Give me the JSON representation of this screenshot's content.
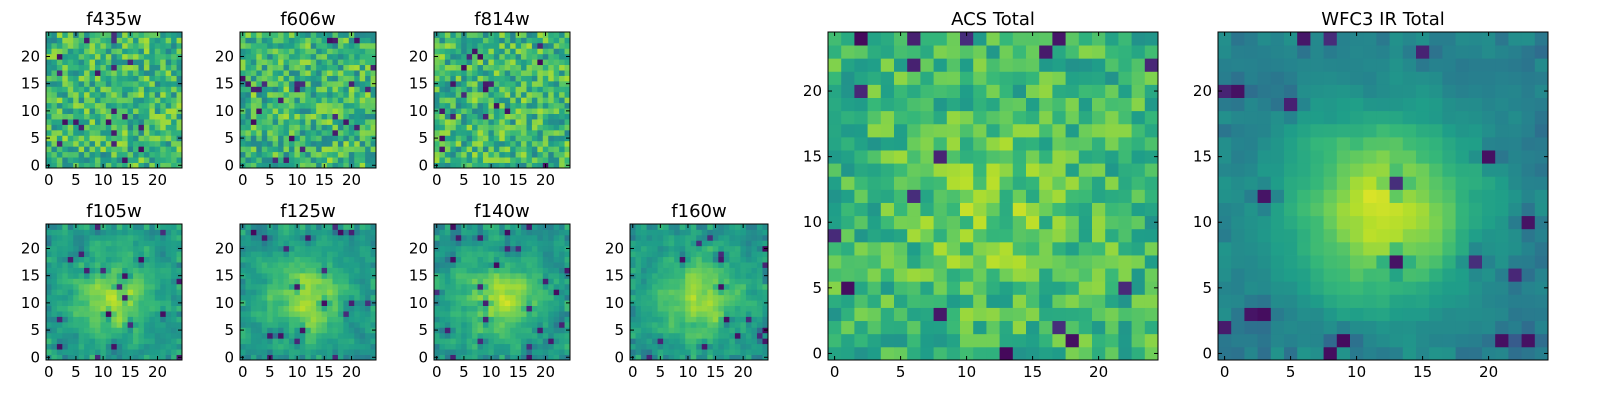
{
  "chart_data": [
    {
      "type": "heatmap",
      "title": "f435w",
      "colormap": "viridis",
      "grid": false,
      "xlim": [
        -0.5,
        24.5
      ],
      "ylim": [
        -0.5,
        24.5
      ],
      "grid_size": 25,
      "seed": 11,
      "structure": "noise",
      "origin": "lower",
      "xticks": [
        0,
        5,
        10,
        15,
        20
      ],
      "yticks": [
        0,
        5,
        10,
        15,
        20
      ],
      "xtick_labels": [
        "0",
        "5",
        "10",
        "15",
        "20"
      ],
      "ytick_labels": [
        "0",
        "5",
        "10",
        "15",
        "20"
      ]
    },
    {
      "type": "heatmap",
      "title": "f606w",
      "colormap": "viridis",
      "grid": false,
      "xlim": [
        -0.5,
        24.5
      ],
      "ylim": [
        -0.5,
        24.5
      ],
      "grid_size": 25,
      "seed": 23,
      "structure": "noise",
      "origin": "lower",
      "xticks": [
        0,
        5,
        10,
        15,
        20
      ],
      "yticks": [
        0,
        5,
        10,
        15,
        20
      ],
      "xtick_labels": [
        "0",
        "5",
        "10",
        "15",
        "20"
      ],
      "ytick_labels": [
        "0",
        "5",
        "10",
        "15",
        "20"
      ]
    },
    {
      "type": "heatmap",
      "title": "f814w",
      "colormap": "viridis",
      "grid": false,
      "xlim": [
        -0.5,
        24.5
      ],
      "ylim": [
        -0.5,
        24.5
      ],
      "grid_size": 25,
      "seed": 37,
      "structure": "noise",
      "origin": "lower",
      "xticks": [
        0,
        5,
        10,
        15,
        20
      ],
      "yticks": [
        0,
        5,
        10,
        15,
        20
      ],
      "xtick_labels": [
        "0",
        "5",
        "10",
        "15",
        "20"
      ],
      "ytick_labels": [
        "0",
        "5",
        "10",
        "15",
        "20"
      ]
    },
    {
      "type": "heatmap",
      "title": "f105w",
      "colormap": "viridis",
      "grid": false,
      "xlim": [
        -0.5,
        24.5
      ],
      "ylim": [
        -0.5,
        24.5
      ],
      "grid_size": 25,
      "seed": 41,
      "structure": "blob",
      "origin": "lower",
      "xticks": [
        0,
        5,
        10,
        15,
        20
      ],
      "yticks": [
        0,
        5,
        10,
        15,
        20
      ],
      "xtick_labels": [
        "0",
        "5",
        "10",
        "15",
        "20"
      ],
      "ytick_labels": [
        "0",
        "5",
        "10",
        "15",
        "20"
      ]
    },
    {
      "type": "heatmap",
      "title": "f125w",
      "colormap": "viridis",
      "grid": false,
      "xlim": [
        -0.5,
        24.5
      ],
      "ylim": [
        -0.5,
        24.5
      ],
      "grid_size": 25,
      "seed": 53,
      "structure": "blob",
      "origin": "lower",
      "xticks": [
        0,
        5,
        10,
        15,
        20
      ],
      "yticks": [
        0,
        5,
        10,
        15,
        20
      ],
      "xtick_labels": [
        "0",
        "5",
        "10",
        "15",
        "20"
      ],
      "ytick_labels": [
        "0",
        "5",
        "10",
        "15",
        "20"
      ]
    },
    {
      "type": "heatmap",
      "title": "f140w",
      "colormap": "viridis",
      "grid": false,
      "xlim": [
        -0.5,
        24.5
      ],
      "ylim": [
        -0.5,
        24.5
      ],
      "grid_size": 25,
      "seed": 67,
      "structure": "blob",
      "origin": "lower",
      "xticks": [
        0,
        5,
        10,
        15,
        20
      ],
      "yticks": [
        0,
        5,
        10,
        15,
        20
      ],
      "xtick_labels": [
        "0",
        "5",
        "10",
        "15",
        "20"
      ],
      "ytick_labels": [
        "0",
        "5",
        "10",
        "15",
        "20"
      ]
    },
    {
      "type": "heatmap",
      "title": "f160w",
      "colormap": "viridis",
      "grid": false,
      "xlim": [
        -0.5,
        24.5
      ],
      "ylim": [
        -0.5,
        24.5
      ],
      "grid_size": 25,
      "seed": 79,
      "structure": "blob",
      "origin": "lower",
      "xticks": [
        0,
        5,
        10,
        15,
        20
      ],
      "yticks": [
        0,
        5,
        10,
        15,
        20
      ],
      "xtick_labels": [
        "0",
        "5",
        "10",
        "15",
        "20"
      ],
      "ytick_labels": [
        "0",
        "5",
        "10",
        "15",
        "20"
      ]
    },
    {
      "type": "heatmap",
      "title": "ACS Total",
      "colormap": "viridis",
      "grid": false,
      "xlim": [
        -0.5,
        24.5
      ],
      "ylim": [
        -0.5,
        24.5
      ],
      "grid_size": 25,
      "seed": 97,
      "structure": "noise_soft",
      "origin": "lower",
      "xticks": [
        0,
        5,
        10,
        15,
        20
      ],
      "yticks": [
        0,
        5,
        10,
        15,
        20
      ],
      "xtick_labels": [
        "0",
        "5",
        "10",
        "15",
        "20"
      ],
      "ytick_labels": [
        "0",
        "5",
        "10",
        "15",
        "20"
      ]
    },
    {
      "type": "heatmap",
      "title": "WFC3 IR Total",
      "colormap": "viridis",
      "grid": false,
      "xlim": [
        -0.5,
        24.5
      ],
      "ylim": [
        -0.5,
        24.5
      ],
      "grid_size": 25,
      "seed": 113,
      "structure": "blob_strong",
      "origin": "lower",
      "xticks": [
        0,
        5,
        10,
        15,
        20
      ],
      "yticks": [
        0,
        5,
        10,
        15,
        20
      ],
      "xtick_labels": [
        "0",
        "5",
        "10",
        "15",
        "20"
      ],
      "ytick_labels": [
        "0",
        "5",
        "10",
        "15",
        "20"
      ]
    }
  ]
}
